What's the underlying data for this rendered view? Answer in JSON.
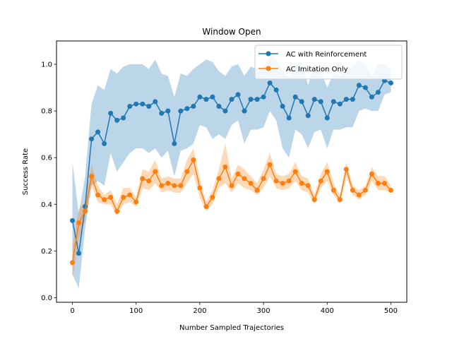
{
  "chart_data": {
    "type": "line",
    "title": "Window Open",
    "xlabel": "Number Sampled Trajectories",
    "ylabel": "Success Rate",
    "xlim": [
      -25,
      525
    ],
    "ylim": [
      -0.02,
      1.1
    ],
    "xticks": [
      0,
      100,
      200,
      300,
      400,
      500
    ],
    "yticks": [
      0.0,
      0.2,
      0.4,
      0.6,
      0.8,
      1.0
    ],
    "xtick_labels": [
      "0",
      "100",
      "200",
      "300",
      "400",
      "500"
    ],
    "ytick_labels": [
      "0.0",
      "0.2",
      "0.4",
      "0.6",
      "0.8",
      "1.0"
    ],
    "legend_position": "top-right",
    "x": [
      0,
      10,
      20,
      30,
      40,
      50,
      60,
      70,
      80,
      90,
      100,
      110,
      120,
      130,
      140,
      150,
      160,
      170,
      180,
      190,
      200,
      210,
      220,
      230,
      240,
      250,
      260,
      270,
      280,
      290,
      300,
      310,
      320,
      330,
      340,
      350,
      360,
      370,
      380,
      390,
      400,
      410,
      420,
      430,
      440,
      450,
      460,
      470,
      480,
      490,
      500
    ],
    "series": [
      {
        "name": "AC with Reinforcement",
        "color": "#1f77b4",
        "values": [
          0.33,
          0.19,
          0.39,
          0.68,
          0.71,
          0.66,
          0.79,
          0.76,
          0.77,
          0.82,
          0.83,
          0.83,
          0.82,
          0.84,
          0.79,
          0.8,
          0.66,
          0.8,
          0.81,
          0.82,
          0.86,
          0.85,
          0.86,
          0.82,
          0.8,
          0.85,
          0.87,
          0.8,
          0.85,
          0.85,
          0.86,
          0.92,
          0.89,
          0.82,
          0.77,
          0.86,
          0.84,
          0.78,
          0.85,
          0.84,
          0.77,
          0.84,
          0.83,
          0.85,
          0.85,
          0.91,
          0.9,
          0.86,
          0.88,
          0.93,
          0.92
        ],
        "lower": [
          0.1,
          0.04,
          0.3,
          0.48,
          0.5,
          0.48,
          0.62,
          0.54,
          0.58,
          0.62,
          0.64,
          0.64,
          0.62,
          0.64,
          0.6,
          0.63,
          0.52,
          0.63,
          0.64,
          0.66,
          0.74,
          0.73,
          0.68,
          0.7,
          0.68,
          0.74,
          0.76,
          0.66,
          0.72,
          0.72,
          0.73,
          0.8,
          0.76,
          0.64,
          0.6,
          0.72,
          0.7,
          0.64,
          0.71,
          0.72,
          0.64,
          0.72,
          0.72,
          0.73,
          0.73,
          0.8,
          0.81,
          0.8,
          0.8,
          0.87,
          0.88
        ],
        "upper": [
          0.58,
          0.36,
          0.52,
          0.83,
          0.91,
          0.89,
          0.98,
          0.96,
          0.99,
          1.0,
          1.0,
          1.0,
          0.98,
          1.02,
          0.96,
          0.95,
          0.86,
          0.96,
          0.95,
          0.98,
          1.0,
          1.02,
          1.01,
          0.97,
          0.95,
          0.99,
          1.0,
          0.95,
          0.99,
          0.98,
          0.98,
          1.04,
          1.02,
          0.97,
          0.94,
          0.99,
          1.01,
          0.91,
          1.0,
          0.97,
          0.9,
          0.96,
          0.95,
          0.97,
          0.99,
          1.02,
          1.0,
          0.95,
          1.0,
          1.0,
          0.98
        ]
      },
      {
        "name": "AC Imitation Only",
        "color": "#ff7f0e",
        "values": [
          0.15,
          0.32,
          0.37,
          0.52,
          0.44,
          0.42,
          0.43,
          0.37,
          0.43,
          0.44,
          0.41,
          0.51,
          0.5,
          0.54,
          0.48,
          0.49,
          0.48,
          0.48,
          0.54,
          0.59,
          0.47,
          0.39,
          0.43,
          0.51,
          0.56,
          0.48,
          0.53,
          0.51,
          0.49,
          0.46,
          0.51,
          0.57,
          0.5,
          0.49,
          0.5,
          0.54,
          0.49,
          0.48,
          0.42,
          0.5,
          0.54,
          0.46,
          0.42,
          0.55,
          0.46,
          0.44,
          0.46,
          0.53,
          0.49,
          0.49,
          0.46
        ],
        "lower": [
          0.08,
          0.25,
          0.33,
          0.48,
          0.41,
          0.4,
          0.4,
          0.35,
          0.4,
          0.41,
          0.39,
          0.47,
          0.46,
          0.49,
          0.45,
          0.46,
          0.45,
          0.45,
          0.49,
          0.53,
          0.43,
          0.37,
          0.4,
          0.47,
          0.49,
          0.45,
          0.49,
          0.47,
          0.46,
          0.44,
          0.47,
          0.52,
          0.47,
          0.46,
          0.47,
          0.5,
          0.46,
          0.45,
          0.4,
          0.47,
          0.5,
          0.44,
          0.4,
          0.52,
          0.44,
          0.42,
          0.44,
          0.5,
          0.46,
          0.46,
          0.45
        ],
        "upper": [
          0.22,
          0.38,
          0.41,
          0.57,
          0.48,
          0.44,
          0.46,
          0.4,
          0.47,
          0.47,
          0.43,
          0.55,
          0.54,
          0.59,
          0.51,
          0.52,
          0.51,
          0.51,
          0.59,
          0.64,
          0.51,
          0.41,
          0.46,
          0.55,
          0.66,
          0.51,
          0.57,
          0.55,
          0.52,
          0.49,
          0.55,
          0.62,
          0.53,
          0.52,
          0.53,
          0.58,
          0.52,
          0.51,
          0.44,
          0.53,
          0.58,
          0.49,
          0.44,
          0.58,
          0.48,
          0.46,
          0.48,
          0.56,
          0.52,
          0.52,
          0.48
        ]
      }
    ]
  }
}
